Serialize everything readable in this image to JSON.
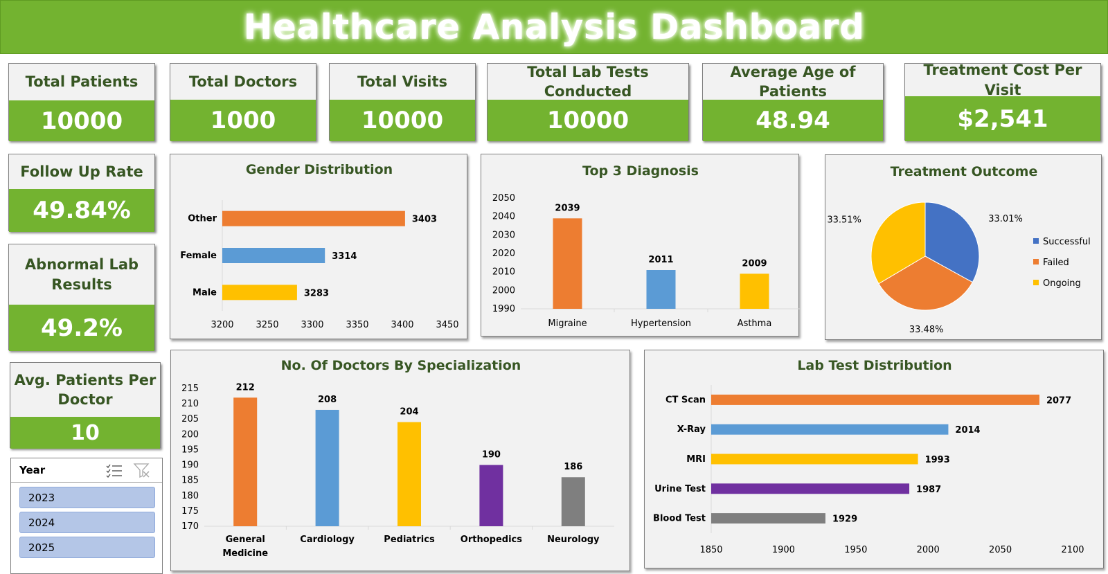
{
  "dashboard": {
    "title": "Healthcare Analysis Dashboard"
  },
  "kpis": {
    "total_patients": {
      "label": "Total Patients",
      "value": "10000"
    },
    "total_doctors": {
      "label": "Total Doctors",
      "value": "1000"
    },
    "total_visits": {
      "label": "Total Visits",
      "value": "10000"
    },
    "total_lab_tests": {
      "label": "Total Lab Tests Conducted",
      "value": "10000"
    },
    "avg_age": {
      "label": "Average Age of Patients",
      "value": "48.94"
    },
    "cost_per_visit": {
      "label": "Treatment Cost Per Visit",
      "value": "$2,541"
    },
    "follow_up_rate": {
      "label": "Follow Up Rate",
      "value": "49.84%"
    },
    "abnormal_lab": {
      "label_line1": "Abnormal Lab",
      "label_line2": "Results",
      "value": "49.2%"
    },
    "avg_patients_per_doctor": {
      "label_line1": "Avg. Patients Per",
      "label_line2": "Doctor",
      "value": "10"
    }
  },
  "slicer": {
    "title": "Year",
    "items": [
      "2023",
      "2024",
      "2025"
    ],
    "icons": [
      "multi-select-icon",
      "clear-filter-icon"
    ]
  },
  "colors": {
    "green": "#73b330",
    "dark_green": "#375623",
    "orange": "#ed7d31",
    "blue": "#5b9bd5",
    "yellow": "#ffc000",
    "purple": "#7030a0",
    "gray": "#7f7f7f",
    "pie_blue": "#4472c4"
  },
  "chart_data": [
    {
      "id": "gender",
      "type": "bar",
      "orientation": "horizontal",
      "title": "Gender Distribution",
      "categories": [
        "Other",
        "Female",
        "Male"
      ],
      "values": [
        3403,
        3314,
        3283
      ],
      "labels": [
        "3403",
        "3314",
        "3283"
      ],
      "colors": [
        "#ed7d31",
        "#5b9bd5",
        "#ffc000"
      ],
      "xlim": [
        3200,
        3450
      ],
      "ticks": [
        3200,
        3250,
        3300,
        3350,
        3400,
        3450
      ],
      "grid": false
    },
    {
      "id": "diagnosis",
      "type": "bar",
      "orientation": "vertical",
      "title": "Top 3 Diagnosis",
      "categories": [
        "Migraine",
        "Hypertension",
        "Asthma"
      ],
      "values": [
        2039,
        2011,
        2009
      ],
      "labels": [
        "2039",
        "2011",
        "2009"
      ],
      "colors": [
        "#ed7d31",
        "#5b9bd5",
        "#ffc000"
      ],
      "ylim": [
        1990,
        2050
      ],
      "ticks": [
        1990,
        2000,
        2010,
        2020,
        2030,
        2040,
        2050
      ],
      "grid": false
    },
    {
      "id": "outcome",
      "type": "pie",
      "title": "Treatment Outcome",
      "categories": [
        "Successful",
        "Failed",
        "Ongoing"
      ],
      "values": [
        33.01,
        33.48,
        33.51
      ],
      "labels": [
        "33.01%",
        "33.48%",
        "33.51%"
      ],
      "colors": [
        "#4472c4",
        "#ed7d31",
        "#ffc000"
      ],
      "legend": "right"
    },
    {
      "id": "specialization",
      "type": "bar",
      "orientation": "vertical",
      "title": "No. Of Doctors By Specialization",
      "categories": [
        [
          "General",
          "Medicine"
        ],
        [
          "Cardiology"
        ],
        [
          "Pediatrics"
        ],
        [
          "Orthopedics"
        ],
        [
          "Neurology"
        ]
      ],
      "values": [
        212,
        208,
        204,
        190,
        186
      ],
      "labels": [
        "212",
        "208",
        "204",
        "190",
        "186"
      ],
      "colors": [
        "#ed7d31",
        "#5b9bd5",
        "#ffc000",
        "#7030a0",
        "#7f7f7f"
      ],
      "ylim": [
        170,
        215
      ],
      "ticks": [
        170,
        175,
        180,
        185,
        190,
        195,
        200,
        205,
        210,
        215
      ],
      "grid": false
    },
    {
      "id": "labtest",
      "type": "bar",
      "orientation": "horizontal",
      "title": "Lab Test Distribution",
      "categories": [
        "CT Scan",
        "X-Ray",
        "MRI",
        "Urine Test",
        "Blood Test"
      ],
      "values": [
        2077,
        2014,
        1993,
        1987,
        1929
      ],
      "labels": [
        "2077",
        "2014",
        "1993",
        "1987",
        "1929"
      ],
      "colors": [
        "#ed7d31",
        "#5b9bd5",
        "#ffc000",
        "#7030a0",
        "#7f7f7f"
      ],
      "xlim": [
        1850,
        2100
      ],
      "ticks": [
        1850,
        1900,
        1950,
        2000,
        2050,
        2100
      ],
      "grid": false
    }
  ]
}
